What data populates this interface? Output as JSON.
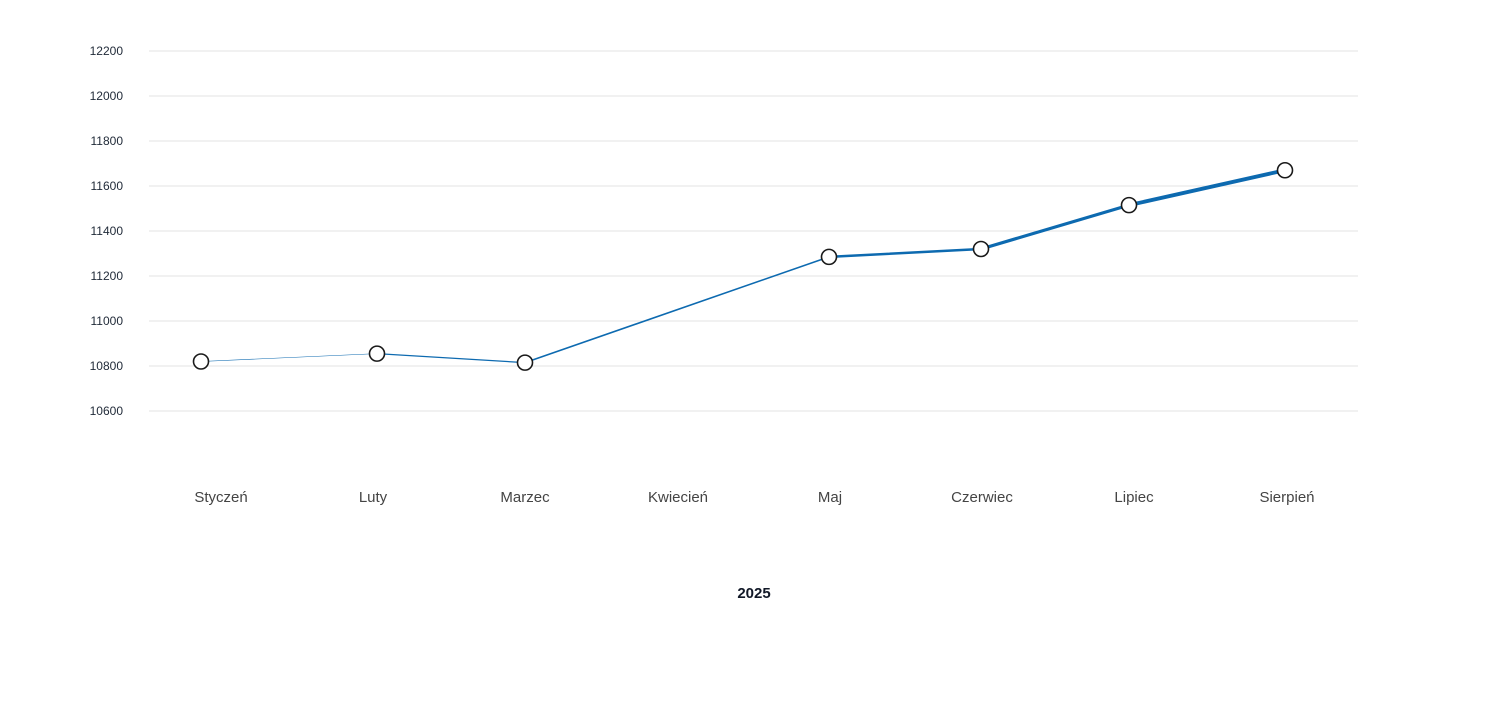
{
  "chart_data": {
    "type": "line",
    "categories": [
      "Styczeń",
      "Luty",
      "Marzec",
      "Kwiecień",
      "Maj",
      "Czerwiec",
      "Lipiec",
      "Sierpień"
    ],
    "series": [
      {
        "values": [
          10820,
          10855,
          10815,
          null,
          11285,
          11320,
          11515,
          11670
        ]
      }
    ],
    "xlabel": "2025",
    "ylabel": "",
    "yticks": [
      10600,
      10800,
      11000,
      11200,
      11400,
      11600,
      11800,
      12000,
      12200
    ],
    "ylim": [
      10600,
      12200
    ],
    "grid": true,
    "line_color": "#0d6ab0"
  }
}
